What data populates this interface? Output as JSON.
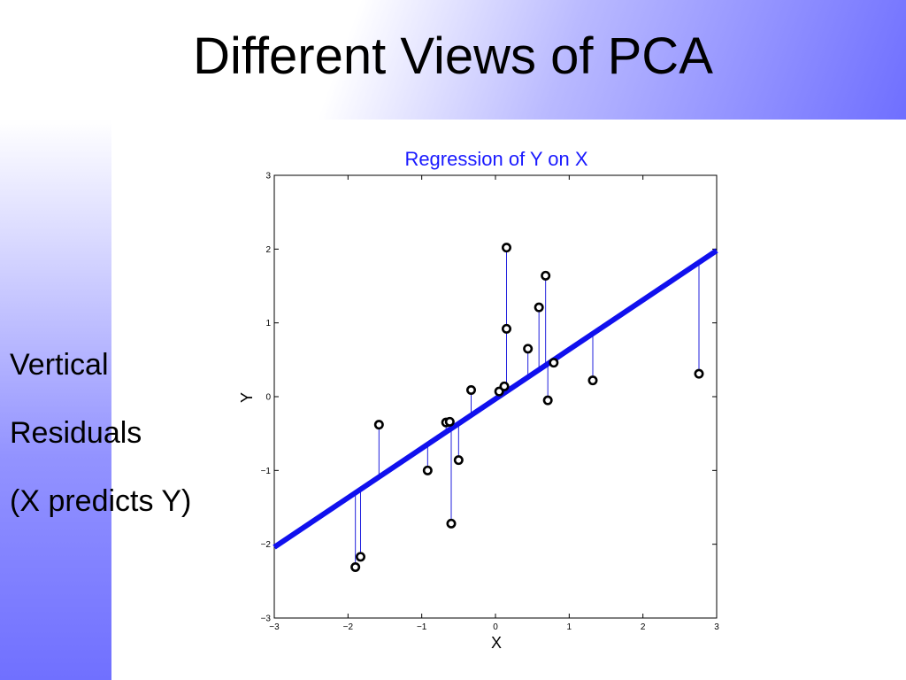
{
  "slide": {
    "title": "Different Views of PCA",
    "side_lines": [
      "Vertical",
      "Residuals",
      "(X predicts Y)"
    ]
  },
  "colors": {
    "regression_line": "#1010ee",
    "residual_line": "#2020dd",
    "chart_title": "#1a1aff",
    "point_stroke": "#000000"
  },
  "chart_data": {
    "type": "scatter",
    "title": "Regression of Y on X",
    "xlabel": "X",
    "ylabel": "Y",
    "xlim": [
      -3,
      3
    ],
    "ylim": [
      -3,
      3
    ],
    "xticks": [
      -3,
      -2,
      -1,
      0,
      1,
      2,
      3
    ],
    "yticks": [
      -3,
      -2,
      -1,
      0,
      1,
      2,
      3
    ],
    "xtick_labels": [
      "−3",
      "−2",
      "−1",
      "0",
      "1",
      "2",
      "3"
    ],
    "ytick_labels": [
      "−3",
      "−2",
      "−1",
      "0",
      "1",
      "2",
      "3"
    ],
    "grid": false,
    "regression_line": {
      "x": [
        -3,
        3
      ],
      "y": [
        -2.04,
        1.98
      ]
    },
    "points": [
      {
        "x": -1.9,
        "y": -2.31
      },
      {
        "x": -1.83,
        "y": -2.17
      },
      {
        "x": -1.58,
        "y": -0.38
      },
      {
        "x": -0.92,
        "y": -1.0
      },
      {
        "x": -0.67,
        "y": -0.35
      },
      {
        "x": -0.62,
        "y": -0.34
      },
      {
        "x": -0.6,
        "y": -1.72
      },
      {
        "x": -0.5,
        "y": -0.86
      },
      {
        "x": -0.33,
        "y": 0.09
      },
      {
        "x": 0.05,
        "y": 0.07
      },
      {
        "x": 0.12,
        "y": 0.14
      },
      {
        "x": 0.15,
        "y": 0.92
      },
      {
        "x": 0.15,
        "y": 2.02
      },
      {
        "x": 0.44,
        "y": 0.65
      },
      {
        "x": 0.59,
        "y": 1.21
      },
      {
        "x": 0.68,
        "y": 1.64
      },
      {
        "x": 0.71,
        "y": -0.05
      },
      {
        "x": 0.79,
        "y": 0.46
      },
      {
        "x": 1.32,
        "y": 0.22
      },
      {
        "x": 2.76,
        "y": 0.31
      }
    ]
  }
}
